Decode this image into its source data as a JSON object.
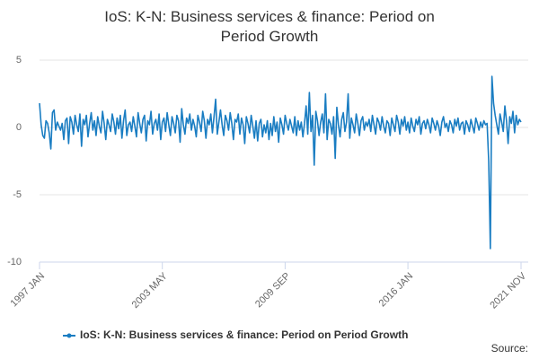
{
  "chart_data": {
    "type": "line",
    "title": "IoS: K-N: Business services & finance: Period on Period Growth",
    "source": "Source:",
    "categories": [
      "1997 JAN",
      null,
      null,
      null,
      null,
      null,
      null,
      null,
      null,
      null,
      null,
      null,
      null,
      null,
      null,
      null,
      null,
      null,
      null,
      null,
      null,
      null,
      null,
      null,
      null,
      null,
      null,
      null,
      null,
      null,
      null,
      null,
      null,
      null,
      null,
      null,
      null,
      null,
      null,
      null,
      null,
      null,
      null,
      null,
      null,
      null,
      null,
      null,
      null,
      null,
      null,
      null,
      null,
      null,
      null,
      null,
      null,
      null,
      null,
      null,
      null,
      null,
      null,
      null,
      null,
      null,
      null,
      null,
      null,
      null,
      null,
      null,
      null,
      null,
      null,
      null,
      "2003 MAY",
      null,
      null,
      null,
      null,
      null,
      null,
      null,
      null,
      null,
      null,
      null,
      null,
      null,
      null,
      null,
      null,
      null,
      null,
      null,
      null,
      null,
      null,
      null,
      null,
      null,
      null,
      null,
      null,
      null,
      null,
      null,
      null,
      null,
      null,
      null,
      null,
      null,
      null,
      null,
      null,
      null,
      null,
      null,
      null,
      null,
      null,
      null,
      null,
      null,
      null,
      null,
      null,
      null,
      null,
      null,
      null,
      null,
      null,
      null,
      null,
      null,
      null,
      null,
      null,
      null,
      null,
      null,
      null,
      null,
      null,
      null,
      null,
      null,
      null,
      null,
      "2009 SEP",
      null,
      null,
      null,
      null,
      null,
      null,
      null,
      null,
      null,
      null,
      null,
      null,
      null,
      null,
      null,
      null,
      null,
      null,
      null,
      null,
      null,
      null,
      null,
      null,
      null,
      null,
      null,
      null,
      null,
      null,
      null,
      null,
      null,
      null,
      null,
      null,
      null,
      null,
      null,
      null,
      null,
      null,
      null,
      null,
      null,
      null,
      null,
      null,
      null,
      null,
      null,
      null,
      null,
      null,
      null,
      null,
      null,
      null,
      null,
      null,
      null,
      null,
      null,
      null,
      null,
      null,
      null,
      null,
      null,
      null,
      null,
      null,
      null,
      null,
      null,
      "2016 JAN",
      null,
      null,
      null,
      null,
      null,
      null,
      null,
      null,
      null,
      null,
      null,
      null,
      null,
      null,
      null,
      null,
      null,
      null,
      null,
      null,
      null,
      null,
      null,
      null,
      null,
      null,
      null,
      null,
      null,
      null,
      null,
      null,
      null,
      null,
      null,
      null,
      null,
      null,
      null,
      null,
      null,
      null,
      null,
      null,
      null,
      null,
      null,
      null,
      null,
      null,
      null,
      null,
      null,
      null,
      null,
      null,
      null,
      null,
      null,
      null,
      null,
      null,
      null,
      null,
      null,
      null,
      null,
      null,
      null,
      "2021 NOV"
    ],
    "series": [
      {
        "name": "IoS: K-N: Business services & finance: Period on Period Growth",
        "color": "#1a7dc2",
        "values": [
          1.8,
          0.2,
          -0.6,
          -0.8,
          0.5,
          0.3,
          -0.4,
          -1.6,
          1.1,
          1.3,
          -0.2,
          0.4,
          0.1,
          -0.2,
          0.3,
          -0.9,
          0.5,
          0.7,
          -1.2,
          0.8,
          0.4,
          -0.5,
          0.9,
          0.2,
          -0.3,
          1.0,
          -1.4,
          0.6,
          0.2,
          0.9,
          -0.7,
          0.3,
          1.1,
          -0.2,
          0.5,
          -0.6,
          0.8,
          0.1,
          -0.4,
          1.2,
          0.3,
          -0.9,
          0.6,
          0.2,
          -0.3,
          1.0,
          0.4,
          -0.5,
          0.7,
          -0.1,
          0.9,
          -0.8,
          0.5,
          1.3,
          -0.6,
          0.2,
          0.4,
          -0.3,
          0.8,
          0.1,
          -0.7,
          1.1,
          0.3,
          -0.4,
          0.6,
          0.9,
          -1.0,
          0.5,
          0.2,
          1.2,
          -0.5,
          0.3,
          0.6,
          -0.2,
          1.0,
          -0.9,
          0.4,
          0.7,
          -0.3,
          1.1,
          0.2,
          -0.6,
          0.8,
          0.3,
          -0.4,
          0.9,
          0.5,
          -1.1,
          1.4,
          0.2,
          -0.5,
          0.7,
          0.3,
          1.0,
          -0.2,
          0.6,
          0.1,
          -0.7,
          0.9,
          0.4,
          -0.3,
          1.2,
          0.5,
          -0.8,
          0.6,
          0.2,
          1.0,
          -0.4,
          0.8,
          2.1,
          -0.5,
          0.4,
          1.3,
          0.2,
          -0.6,
          0.9,
          0.5,
          -0.2,
          1.1,
          0.3,
          -0.9,
          0.6,
          0.4,
          1.0,
          -0.5,
          0.7,
          0.2,
          -1.2,
          0.8,
          0.3,
          -0.4,
          0.9,
          0.1,
          -0.8,
          0.5,
          -1.0,
          0.3,
          0.6,
          -0.7,
          0.2,
          -0.4,
          0.5,
          -0.9,
          0.3,
          -0.6,
          0.8,
          -0.3,
          0.4,
          -1.1,
          0.7,
          0.2,
          -0.5,
          0.9,
          0.3,
          -0.2,
          0.6,
          0.1,
          -0.4,
          0.8,
          -0.6,
          0.5,
          -0.2,
          0.4,
          -0.7,
          0.3,
          1.6,
          -0.5,
          2.6,
          -0.3,
          0.9,
          -2.8,
          1.2,
          0.5,
          -0.6,
          0.4,
          1.0,
          -0.4,
          2.5,
          -0.9,
          0.6,
          0.3,
          -0.5,
          0.8,
          -2.3,
          1.5,
          0.2,
          -0.7,
          0.6,
          1.1,
          -0.3,
          0.4,
          2.5,
          -0.8,
          0.7,
          0.2,
          -0.4,
          1.0,
          0.3,
          -0.6,
          0.5,
          0.8,
          -0.2,
          0.4,
          0.1,
          0.6,
          -0.3,
          0.9,
          0.2,
          -0.5,
          0.7,
          0.4,
          -0.2,
          0.8,
          0.1,
          -0.4,
          0.5,
          0.3,
          -0.6,
          0.7,
          0.2,
          -0.3,
          0.9,
          0.4,
          -0.5,
          0.6,
          0.1,
          0.8,
          -0.2,
          0.4,
          -0.4,
          0.7,
          0.1,
          -0.3,
          0.6,
          0.2,
          0.8,
          -0.5,
          0.3,
          0.5,
          -0.1,
          0.6,
          0.2,
          -0.4,
          0.7,
          0.3,
          -0.2,
          0.5,
          0.1,
          -0.6,
          0.4,
          0.8,
          0.0,
          0.3,
          -0.3,
          0.5,
          0.2,
          -0.4,
          0.6,
          0.1,
          0.7,
          -0.2,
          0.3,
          0.4,
          -0.5,
          0.5,
          0.2,
          -0.3,
          0.6,
          0.1,
          -0.4,
          0.7,
          0.3,
          -0.2,
          0.4,
          0.0,
          0.5,
          0.2,
          0.3,
          -2.5,
          -9.0,
          3.8,
          1.8,
          0.9,
          0.2,
          -0.5,
          1.0,
          0.4,
          -0.3,
          1.6,
          0.5,
          -1.2,
          0.8,
          0.3,
          1.2,
          -0.4,
          0.9,
          0.2,
          0.6,
          0.4
        ]
      }
    ],
    "ylim": [
      -10,
      5
    ],
    "yticks": [
      -10,
      -5,
      0,
      5
    ],
    "grid": true,
    "legend": "bottom"
  }
}
